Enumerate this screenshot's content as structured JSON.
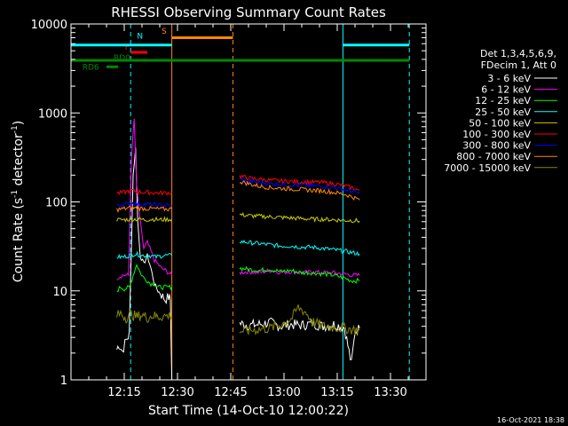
{
  "chart_data": {
    "type": "line",
    "title": "RHESSI Observing Summary Count Rates",
    "xlabel": "Start Time (14-Oct-10 12:00:22)",
    "ylabel_main": "Count Rate (s",
    "ylabel_sup1": "-1",
    "ylabel_mid": " detector",
    "ylabel_sup2": "-1",
    "ylabel_end": ")",
    "yscale": "log",
    "ylim": [
      1,
      10000
    ],
    "xlim_minutes": [
      0,
      100
    ],
    "x_ticks": [
      {
        "t": 15,
        "label": "12:15"
      },
      {
        "t": 30,
        "label": "12:30"
      },
      {
        "t": 45,
        "label": "12:45"
      },
      {
        "t": 60,
        "label": "13:00"
      },
      {
        "t": 75,
        "label": "13:15"
      },
      {
        "t": 90,
        "label": "13:30"
      }
    ],
    "y_ticks": [
      {
        "v": 1,
        "label": "1"
      },
      {
        "v": 10,
        "label": "10"
      },
      {
        "v": 100,
        "label": "100"
      },
      {
        "v": 1000,
        "label": "1000"
      },
      {
        "v": 10000,
        "label": "10000"
      }
    ],
    "legend_header": [
      "Det 1,3,4,5,6,9,",
      "FDecim 1, Att 0"
    ],
    "legend_position": "right",
    "series": [
      {
        "name": "3 - 6 keV",
        "color": "#ffffff",
        "segments": [
          [
            [
              12.9,
              2.2
            ],
            [
              13.5,
              2.5
            ],
            [
              14.5,
              2.1
            ],
            [
              15.5,
              2.8
            ],
            [
              16.4,
              3.2
            ],
            [
              17.5,
              200
            ],
            [
              18.2,
              400
            ],
            [
              18.8,
              60
            ],
            [
              19.5,
              25
            ],
            [
              20.5,
              20
            ],
            [
              21.5,
              25
            ],
            [
              22.5,
              18
            ],
            [
              23.5,
              12
            ],
            [
              24.5,
              10
            ],
            [
              25.5,
              9
            ],
            [
              26.5,
              8
            ],
            [
              27.5,
              8.5
            ],
            [
              28,
              8
            ],
            [
              28.4,
              1
            ]
          ],
          [
            [
              47.5,
              4.3
            ],
            [
              50,
              4.1
            ],
            [
              53,
              4.2
            ],
            [
              56,
              4.4
            ],
            [
              59,
              4.0
            ],
            [
              62,
              4.2
            ],
            [
              65,
              4.1
            ],
            [
              68,
              4.3
            ],
            [
              71,
              4.0
            ],
            [
              74,
              4.2
            ],
            [
              77,
              3.9
            ],
            [
              79,
              1.5
            ],
            [
              80,
              3.5
            ],
            [
              81.3,
              3.8
            ]
          ]
        ]
      },
      {
        "name": "6 - 12 keV",
        "color": "#ff00ff",
        "segments": [
          [
            [
              12.9,
              14
            ],
            [
              14.5,
              15
            ],
            [
              16.2,
              15
            ],
            [
              17,
              300
            ],
            [
              17.8,
              850
            ],
            [
              18.5,
              150
            ],
            [
              19.5,
              60
            ],
            [
              20.5,
              30
            ],
            [
              21.5,
              35
            ],
            [
              22.5,
              28
            ],
            [
              23.5,
              22
            ],
            [
              24.5,
              20
            ],
            [
              25.5,
              18
            ],
            [
              26.5,
              17
            ],
            [
              27.5,
              16
            ],
            [
              28.4,
              15
            ]
          ],
          [
            [
              47.5,
              16
            ],
            [
              50,
              16.5
            ],
            [
              53,
              16
            ],
            [
              56,
              17
            ],
            [
              59,
              16.2
            ],
            [
              62,
              16.5
            ],
            [
              65,
              16
            ],
            [
              68,
              16.3
            ],
            [
              71,
              16
            ],
            [
              74,
              16
            ],
            [
              77,
              15.5
            ],
            [
              79,
              15
            ],
            [
              81.3,
              15
            ]
          ]
        ]
      },
      {
        "name": "12 - 25 keV",
        "color": "#00ff00",
        "segments": [
          [
            [
              12.9,
              10
            ],
            [
              14,
              11
            ],
            [
              15,
              10.5
            ],
            [
              16.5,
              11
            ],
            [
              17.5,
              15
            ],
            [
              18.5,
              20
            ],
            [
              19.5,
              16
            ],
            [
              20.5,
              14
            ],
            [
              21.5,
              13
            ],
            [
              22.5,
              12
            ],
            [
              23.5,
              12
            ],
            [
              24.5,
              11
            ],
            [
              25.5,
              11
            ],
            [
              26.5,
              11
            ],
            [
              27.5,
              11
            ],
            [
              28.4,
              11
            ]
          ],
          [
            [
              47.5,
              18
            ],
            [
              50,
              17.5
            ],
            [
              53,
              17
            ],
            [
              56,
              17.5
            ],
            [
              59,
              16.5
            ],
            [
              62,
              17
            ],
            [
              65,
              16
            ],
            [
              68,
              16
            ],
            [
              71,
              15.5
            ],
            [
              74,
              15
            ],
            [
              77,
              14
            ],
            [
              79,
              13
            ],
            [
              81.3,
              13
            ]
          ]
        ]
      },
      {
        "name": "25 - 50 keV",
        "color": "#00ffff",
        "segments": [
          [
            [
              12.9,
              24
            ],
            [
              14.5,
              24
            ],
            [
              16.5,
              25
            ],
            [
              18,
              26
            ],
            [
              20,
              25
            ],
            [
              22,
              25
            ],
            [
              24,
              24
            ],
            [
              26,
              25
            ],
            [
              28.4,
              25
            ]
          ],
          [
            [
              47.5,
              36
            ],
            [
              50,
              35
            ],
            [
              53,
              34
            ],
            [
              56,
              33
            ],
            [
              59,
              32
            ],
            [
              62,
              32
            ],
            [
              65,
              31
            ],
            [
              68,
              31
            ],
            [
              71,
              30
            ],
            [
              74,
              29
            ],
            [
              77,
              28
            ],
            [
              79,
              27
            ],
            [
              81.3,
              26
            ]
          ]
        ]
      },
      {
        "name": "50 - 100 keV",
        "color": "#cccc00",
        "segments": [
          [
            [
              12.9,
              63
            ],
            [
              15,
              63
            ],
            [
              17,
              64
            ],
            [
              19,
              64
            ],
            [
              21,
              63
            ],
            [
              23,
              64
            ],
            [
              25,
              63
            ],
            [
              28.4,
              64
            ]
          ],
          [
            [
              47.5,
              72
            ],
            [
              50,
              70
            ],
            [
              53,
              69
            ],
            [
              56,
              68
            ],
            [
              59,
              67
            ],
            [
              62,
              66
            ],
            [
              65,
              65
            ],
            [
              68,
              64
            ],
            [
              71,
              64
            ],
            [
              74,
              63
            ],
            [
              77,
              62
            ],
            [
              79,
              62
            ],
            [
              81.3,
              61
            ]
          ]
        ]
      },
      {
        "name": "100 - 300 keV",
        "color": "#ff0000",
        "segments": [
          [
            [
              12.9,
              125
            ],
            [
              15,
              128
            ],
            [
              17,
              135
            ],
            [
              19,
              130
            ],
            [
              21,
              128
            ],
            [
              23,
              127
            ],
            [
              25,
              126
            ],
            [
              28.4,
              127
            ]
          ],
          [
            [
              47.5,
              195
            ],
            [
              50,
              185
            ],
            [
              53,
              180
            ],
            [
              56,
              175
            ],
            [
              59,
              172
            ],
            [
              62,
              170
            ],
            [
              65,
              168
            ],
            [
              68,
              167
            ],
            [
              71,
              165
            ],
            [
              74,
              160
            ],
            [
              77,
              152
            ],
            [
              79,
              145
            ],
            [
              81.3,
              135
            ]
          ]
        ]
      },
      {
        "name": "300 - 800 keV",
        "color": "#0000ff",
        "segments": [
          [
            [
              12.9,
              92
            ],
            [
              15,
              94
            ],
            [
              17,
              97
            ],
            [
              19,
              95
            ],
            [
              21,
              94
            ],
            [
              23,
              93
            ],
            [
              25,
              92
            ],
            [
              28.4,
              91
            ]
          ],
          [
            [
              47.5,
              180
            ],
            [
              50,
              170
            ],
            [
              53,
              165
            ],
            [
              56,
              160
            ],
            [
              59,
              158
            ],
            [
              62,
              156
            ],
            [
              65,
              154
            ],
            [
              68,
              152
            ],
            [
              71,
              150
            ],
            [
              74,
              145
            ],
            [
              77,
              138
            ],
            [
              79,
              132
            ],
            [
              81.3,
              125
            ]
          ]
        ]
      },
      {
        "name": "800 - 7000 keV",
        "color": "#ff8800",
        "segments": [
          [
            [
              12.9,
              82
            ],
            [
              15,
              84
            ],
            [
              17,
              86
            ],
            [
              19,
              85
            ],
            [
              21,
              84
            ],
            [
              23,
              84
            ],
            [
              25,
              83
            ],
            [
              28.4,
              83
            ]
          ],
          [
            [
              47.5,
              170
            ],
            [
              50,
              160
            ],
            [
              53,
              150
            ],
            [
              56,
              145
            ],
            [
              59,
              142
            ],
            [
              62,
              140
            ],
            [
              65,
              138
            ],
            [
              68,
              135
            ],
            [
              71,
              133
            ],
            [
              74,
              128
            ],
            [
              77,
              122
            ],
            [
              79,
              115
            ],
            [
              81.3,
              105
            ]
          ]
        ]
      },
      {
        "name": "7000 - 15000 keV",
        "color": "#888800",
        "segments": [
          [
            [
              12.9,
              5.2
            ],
            [
              14,
              5.6
            ],
            [
              15.5,
              5.0
            ],
            [
              17,
              5.5
            ],
            [
              18.5,
              5.1
            ],
            [
              20,
              5.4
            ],
            [
              21.5,
              5.0
            ],
            [
              23,
              5.3
            ],
            [
              24.5,
              5.1
            ],
            [
              26,
              5.2
            ],
            [
              28.4,
              5.3
            ]
          ],
          [
            [
              47.5,
              3.5
            ],
            [
              50,
              3.6
            ],
            [
              53,
              3.7
            ],
            [
              56,
              3.8
            ],
            [
              59,
              4.2
            ],
            [
              62,
              4.8
            ],
            [
              64,
              6.5
            ],
            [
              66,
              5.8
            ],
            [
              68,
              4.5
            ],
            [
              71,
              4.0
            ],
            [
              74,
              3.9
            ],
            [
              77,
              3.8
            ],
            [
              79,
              3.7
            ],
            [
              81.3,
              3.6
            ]
          ]
        ]
      }
    ],
    "state_bars": [
      {
        "label": "F",
        "color": "#ff0000",
        "t0": 16.8,
        "t1": 21.5,
        "v": 4800,
        "label_t": 15.2,
        "label_v": 5500
      },
      {
        "label": "N",
        "color": "#00ffff",
        "t0": 0,
        "t1": 28.4,
        "v": 5800,
        "label_t": 18.6,
        "label_v": 7300
      },
      {
        "label": "N",
        "color": "#00ffff",
        "t0": 76.6,
        "t1": 95.3,
        "v": 5800,
        "label_t": null,
        "label_v": null
      },
      {
        "label": "S",
        "color": "#ff8800",
        "t0": 28.4,
        "t1": 45.6,
        "v": 7000,
        "label_t": 25.5,
        "label_v": 8300
      },
      {
        "label": "RD0",
        "color": "#008800",
        "t0": 0,
        "t1": 95.3,
        "v": 3900,
        "label_t": 12,
        "label_v": 4200
      },
      {
        "label": "RD6",
        "color": "#008800",
        "t0": 10,
        "t1": 13.3,
        "v": 3300,
        "label_t": 3.2,
        "label_v": 3300
      }
    ],
    "vlines": [
      {
        "t": 0,
        "color": "#00ffff",
        "style": "solid"
      },
      {
        "t": 16.8,
        "color": "#00ffff",
        "style": "dashed"
      },
      {
        "t": 28.4,
        "color": "#ff8800",
        "style": "solid"
      },
      {
        "t": 45.6,
        "color": "#ff8800",
        "style": "dashed"
      },
      {
        "t": 76.6,
        "color": "#00ffff",
        "style": "solid"
      },
      {
        "t": 95.3,
        "color": "#00ffff",
        "style": "dashed"
      }
    ]
  },
  "footer": {
    "timestamp": "16-Oct-2021 18:38"
  }
}
